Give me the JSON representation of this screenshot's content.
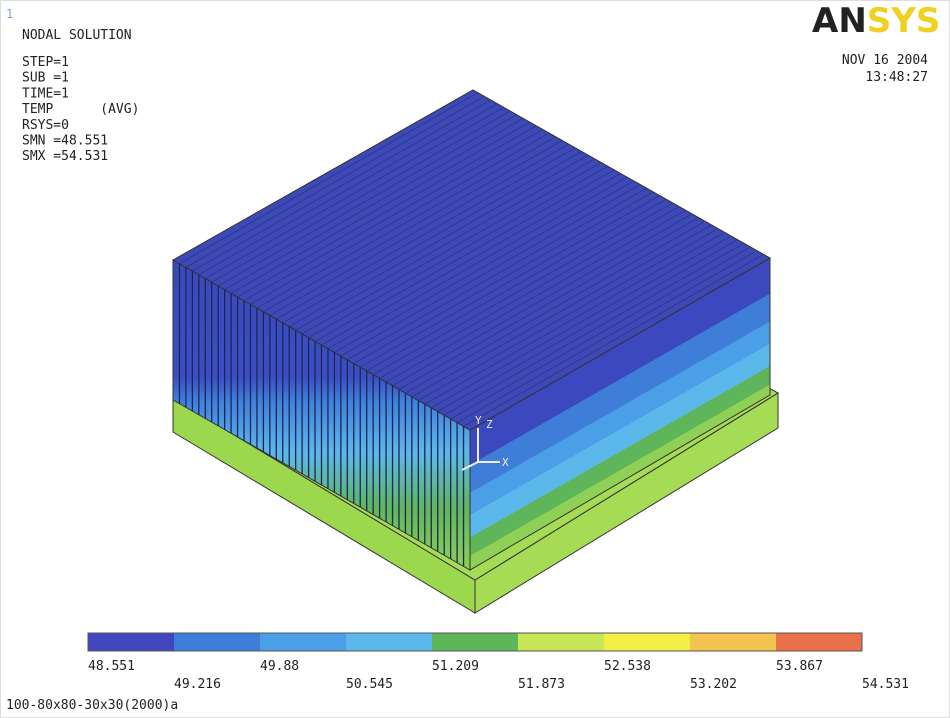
{
  "window_number": "1",
  "info": [
    "NODAL SOLUTION",
    "STEP=1",
    "SUB =1",
    "TIME=1",
    "TEMP      (AVG)",
    "RSYS=0",
    "SMN =48.551",
    "SMX =54.531"
  ],
  "logo": {
    "part1": "AN",
    "part2": "SYS"
  },
  "date": "NOV 16 2004",
  "time": "13:48:27",
  "triad": {
    "y": "Y",
    "z": "Z",
    "x": "X"
  },
  "legend": {
    "colors": [
      "#4046bf",
      "#3f7ed8",
      "#4a9fe6",
      "#5cb8ea",
      "#5fb65a",
      "#c9e656",
      "#f2ee46",
      "#f4c451",
      "#e8714b"
    ],
    "labels": [
      "48.551",
      "49.216",
      "49.88",
      "50.545",
      "51.209",
      "51.873",
      "52.538",
      "53.202",
      "53.867",
      "54.531"
    ]
  },
  "footer": "100-80x80-30x30(2000)a"
}
